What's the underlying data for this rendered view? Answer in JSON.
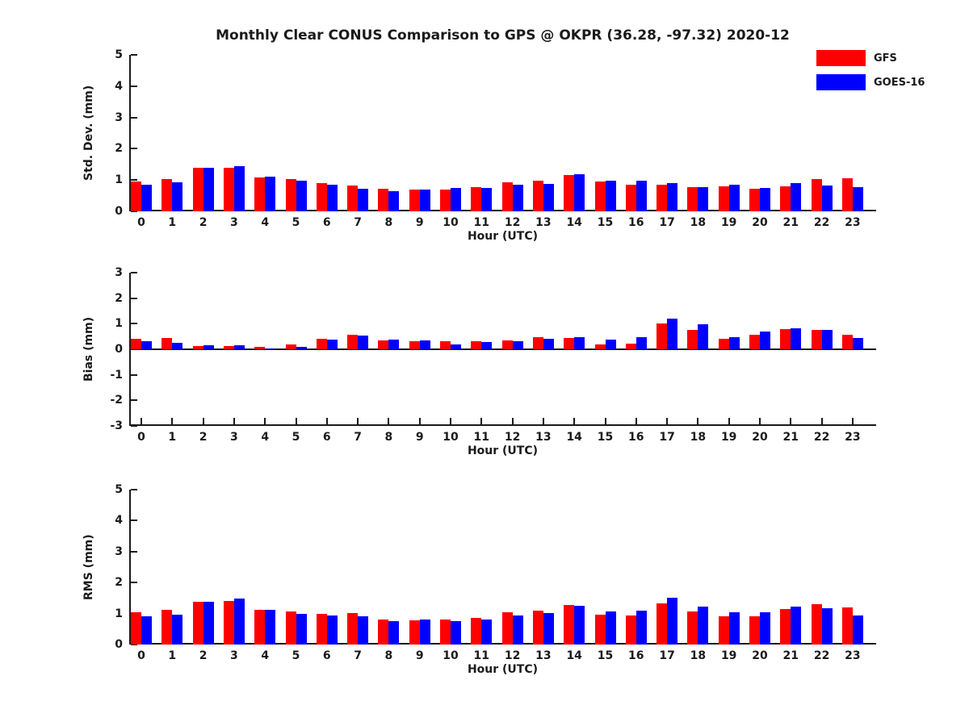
{
  "figure": {
    "title": "Monthly Clear CONUS Comparison to GPS @ OKPR (36.28, -97.32) 2020-12"
  },
  "legend": {
    "items": [
      {
        "label": "GFS",
        "color": "#ff0000"
      },
      {
        "label": "GOES-16",
        "color": "#0000ff"
      }
    ]
  },
  "colors": {
    "gfs": "#ff0000",
    "goes16": "#0000ff",
    "axis": "#1a1a1a",
    "background": "#ffffff"
  },
  "chart_data": [
    {
      "type": "bar",
      "title": "",
      "ylabel": "Std. Dev. (mm)",
      "xlabel": "Hour (UTC)",
      "ylim": [
        0,
        5
      ],
      "yticks": [
        0,
        1,
        2,
        3,
        4,
        5
      ],
      "grid": false,
      "legend_position": "figure-top-right",
      "categories": [
        "0",
        "1",
        "2",
        "3",
        "4",
        "5",
        "6",
        "7",
        "8",
        "9",
        "10",
        "11",
        "12",
        "13",
        "14",
        "15",
        "16",
        "17",
        "18",
        "19",
        "20",
        "21",
        "22",
        "23"
      ],
      "series": [
        {
          "name": "GFS",
          "color": "#ff0000",
          "values": [
            0.95,
            1.02,
            1.38,
            1.38,
            1.08,
            1.02,
            0.91,
            0.82,
            0.71,
            0.7,
            0.7,
            0.78,
            0.93,
            0.97,
            1.17,
            0.95,
            0.85,
            0.84,
            0.77,
            0.79,
            0.73,
            0.79,
            1.02,
            1.05
          ]
        },
        {
          "name": "GOES-16",
          "color": "#0000ff",
          "values": [
            0.85,
            0.93,
            1.38,
            1.45,
            1.1,
            0.97,
            0.85,
            0.71,
            0.65,
            0.7,
            0.74,
            0.75,
            0.85,
            0.88,
            1.18,
            0.99,
            0.97,
            0.89,
            0.77,
            0.86,
            0.76,
            0.89,
            0.82,
            0.78
          ]
        }
      ]
    },
    {
      "type": "bar",
      "title": "",
      "ylabel": "Bias (mm)",
      "xlabel": "Hour (UTC)",
      "ylim": [
        -3,
        3
      ],
      "yticks": [
        -3,
        -2,
        -1,
        0,
        1,
        2,
        3
      ],
      "grid": false,
      "legend_position": "none",
      "categories": [
        "0",
        "1",
        "2",
        "3",
        "4",
        "5",
        "6",
        "7",
        "8",
        "9",
        "10",
        "11",
        "12",
        "13",
        "14",
        "15",
        "16",
        "17",
        "18",
        "19",
        "20",
        "21",
        "22",
        "23"
      ],
      "series": [
        {
          "name": "GFS",
          "color": "#ff0000",
          "values": [
            0.42,
            0.44,
            0.13,
            0.13,
            0.11,
            0.2,
            0.42,
            0.56,
            0.36,
            0.32,
            0.32,
            0.31,
            0.36,
            0.48,
            0.44,
            0.2,
            0.23,
            1.0,
            0.76,
            0.42,
            0.56,
            0.8,
            0.77,
            0.56
          ]
        },
        {
          "name": "GOES-16",
          "color": "#0000ff",
          "values": [
            0.32,
            0.25,
            0.17,
            0.15,
            0.02,
            0.1,
            0.38,
            0.53,
            0.38,
            0.34,
            0.2,
            0.28,
            0.32,
            0.42,
            0.46,
            0.38,
            0.48,
            1.19,
            0.98,
            0.48,
            0.7,
            0.83,
            0.76,
            0.43
          ]
        }
      ]
    },
    {
      "type": "bar",
      "title": "",
      "ylabel": "RMS (mm)",
      "xlabel": "Hour (UTC)",
      "ylim": [
        0,
        5
      ],
      "yticks": [
        0,
        1,
        2,
        3,
        4,
        5
      ],
      "grid": false,
      "legend_position": "none",
      "categories": [
        "0",
        "1",
        "2",
        "3",
        "4",
        "5",
        "6",
        "7",
        "8",
        "9",
        "10",
        "11",
        "12",
        "13",
        "14",
        "15",
        "16",
        "17",
        "18",
        "19",
        "20",
        "21",
        "22",
        "23"
      ],
      "series": [
        {
          "name": "GFS",
          "color": "#ff0000",
          "values": [
            1.04,
            1.11,
            1.37,
            1.4,
            1.12,
            1.07,
            1.0,
            1.01,
            0.8,
            0.77,
            0.8,
            0.87,
            1.03,
            1.09,
            1.28,
            0.97,
            0.94,
            1.32,
            1.07,
            0.91,
            0.92,
            1.14,
            1.3,
            1.19
          ]
        },
        {
          "name": "GOES-16",
          "color": "#0000ff",
          "values": [
            0.91,
            0.96,
            1.37,
            1.48,
            1.12,
            0.98,
            0.93,
            0.91,
            0.76,
            0.8,
            0.76,
            0.82,
            0.94,
            1.01,
            1.25,
            1.08,
            1.1,
            1.5,
            1.23,
            1.03,
            1.04,
            1.22,
            1.16,
            0.93
          ]
        }
      ]
    }
  ]
}
